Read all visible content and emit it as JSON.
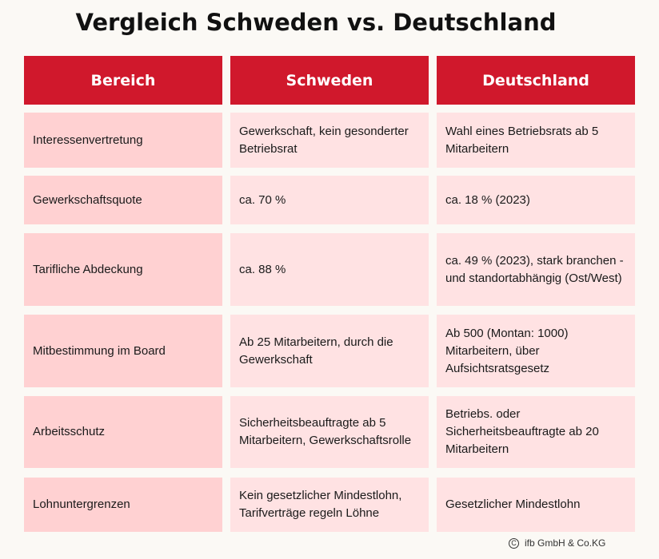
{
  "title": "Vergleich Schweden vs. Deutschland",
  "table": {
    "headers": [
      "Bereich",
      "Schweden",
      "Deutschland"
    ],
    "rows": [
      [
        "Interessenvertretung",
        "Gewerkschaft, kein gesonderter Betriebsrat",
        "Wahl eines Betriebsrats ab 5 Mitarbeitern"
      ],
      [
        "Gewerkschaftsquote",
        "ca. 70 %",
        "ca. 18 % (2023)"
      ],
      [
        "Tarifliche Abdeckung",
        "ca. 88 %",
        "ca. 49 % (2023), stark branchen - und standortabhängig (Ost/West)"
      ],
      [
        "Mitbestimmung im Board",
        "Ab 25 Mitarbeitern, durch die Gewerkschaft",
        "Ab 500 (Montan: 1000) Mitarbeitern, über Aufsichtsratsgesetz"
      ],
      [
        "Arbeitsschutz",
        "Sicherheitsbeauftragte ab 5 Mitarbeitern, Gewerkschaftsrolle",
        "Betriebs. oder Sicherheitsbeauftragte ab 20 Mitarbeitern"
      ],
      [
        "Lohnuntergrenzen",
        "Kein gesetzlicher Mindestlohn, Tarifverträge regeln Löhne",
        "Gesetzlicher Mindestlohn"
      ]
    ]
  },
  "footer": {
    "copyright_symbol": "C",
    "text": "ifb GmbH & Co.KG"
  },
  "colors": {
    "header_bg": "#d0182c",
    "first_col_bg": "#ffd1d2",
    "cell_bg": "#ffe2e3",
    "page_bg": "#fbf9f5"
  }
}
